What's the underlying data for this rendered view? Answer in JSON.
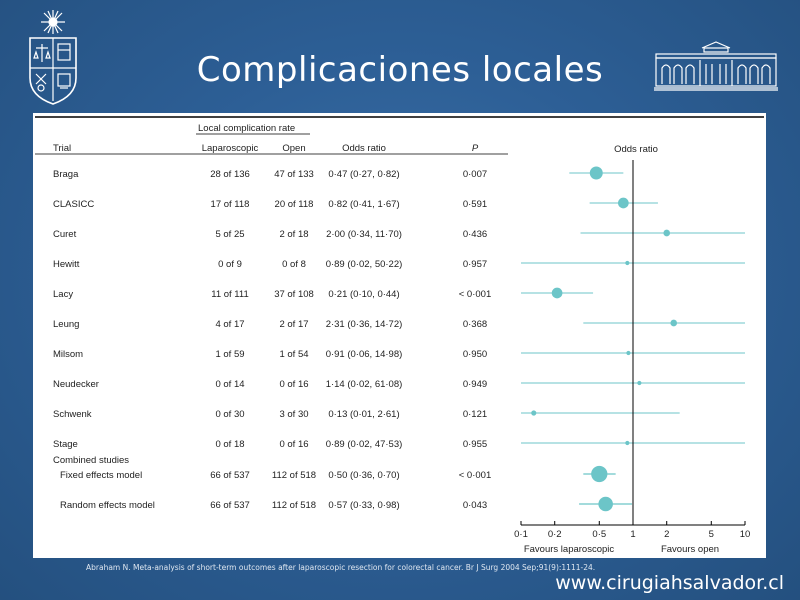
{
  "slide": {
    "title": "Complicaciones locales",
    "citation": "Abraham N. Meta-analysis of short-term outcomes after laparoscopic resection for colorectal cancer. Br J Surg 2004 Sep;91(9):1111-24.",
    "website": "www.cirugiahsalvador.cl"
  },
  "table": {
    "group_header": "Local complication rate",
    "headers": {
      "trial": "Trial",
      "laparoscopic": "Laparoscopic",
      "open": "Open",
      "odds_ratio": "Odds ratio",
      "p": "P"
    },
    "combined_label": "Combined studies"
  },
  "chart_data": {
    "type": "forest",
    "title": "Odds ratio",
    "xscale": "log",
    "xlim": [
      0.1,
      10
    ],
    "xticks": [
      "0·1",
      "0·2",
      "0·5",
      "1",
      "2",
      "5",
      "10"
    ],
    "xtick_values": [
      0.1,
      0.2,
      0.5,
      1,
      2,
      5,
      10
    ],
    "favours_left": "Favours laparoscopic",
    "favours_right": "Favours open",
    "marker_color": "#6cc5c8",
    "rows": [
      {
        "trial": "Braga",
        "lap": "28 of 136",
        "open": "47 of 133",
        "or_text": "0·47 (0·27, 0·82)",
        "p_text": "0·007",
        "or": 0.47,
        "lo": 0.27,
        "hi": 0.82,
        "weight": 9.5
      },
      {
        "trial": "CLASICC",
        "lap": "17 of 118",
        "open": "20 of 118",
        "or_text": "0·82 (0·41, 1·67)",
        "p_text": "0·591",
        "or": 0.82,
        "lo": 0.41,
        "hi": 1.67,
        "weight": 6.5
      },
      {
        "trial": "Curet",
        "lap": "5 of 25",
        "open": "2 of 18",
        "or_text": "2·00 (0·34, 11·70)",
        "p_text": "0·436",
        "or": 2.0,
        "lo": 0.34,
        "hi": 11.7,
        "weight": 2.5
      },
      {
        "trial": "Hewitt",
        "lap": "0 of 9",
        "open": "0 of 8",
        "or_text": "0·89 (0·02, 50·22)",
        "p_text": "0·957",
        "or": 0.89,
        "lo": 0.02,
        "hi": 50.22,
        "weight": 1
      },
      {
        "trial": "Lacy",
        "lap": "11 of 111",
        "open": "37 of 108",
        "or_text": "0·21 (0·10, 0·44)",
        "p_text": "< 0·001",
        "or": 0.21,
        "lo": 0.1,
        "hi": 0.44,
        "weight": 6.5
      },
      {
        "trial": "Leung",
        "lap": "4 of 17",
        "open": "2 of 17",
        "or_text": "2·31 (0·36, 14·72)",
        "p_text": "0·368",
        "or": 2.31,
        "lo": 0.36,
        "hi": 14.72,
        "weight": 2.5
      },
      {
        "trial": "Milsom",
        "lap": "1 of 59",
        "open": "1 of 54",
        "or_text": "0·91 (0·06, 14·98)",
        "p_text": "0·950",
        "or": 0.91,
        "lo": 0.06,
        "hi": 14.98,
        "weight": 1
      },
      {
        "trial": "Neudecker",
        "lap": "0 of 14",
        "open": "0 of 16",
        "or_text": "1·14 (0·02, 61·08)",
        "p_text": "0·949",
        "or": 1.14,
        "lo": 0.02,
        "hi": 61.08,
        "weight": 1
      },
      {
        "trial": "Schwenk",
        "lap": "0 of 30",
        "open": "3 of 30",
        "or_text": "0·13 (0·01, 2·61)",
        "p_text": "0·121",
        "or": 0.13,
        "lo": 0.01,
        "hi": 2.61,
        "weight": 1.5
      },
      {
        "trial": "Stage",
        "lap": "0 of 18",
        "open": "0 of 16",
        "or_text": "0·89 (0·02, 47·53)",
        "p_text": "0·955",
        "or": 0.89,
        "lo": 0.02,
        "hi": 47.53,
        "weight": 1
      }
    ],
    "combined": [
      {
        "trial": "Fixed effects model",
        "lap": "66 of 537",
        "open": "112 of 518",
        "or_text": "0·50 (0·36, 0·70)",
        "p_text": "< 0·001",
        "or": 0.5,
        "lo": 0.36,
        "hi": 0.7,
        "weight": 15
      },
      {
        "trial": "Random effects model",
        "lap": "66 of 537",
        "open": "112 of 518",
        "or_text": "0·57 (0·33, 0·98)",
        "p_text": "0·043",
        "or": 0.57,
        "lo": 0.33,
        "hi": 0.98,
        "weight": 12
      }
    ]
  }
}
